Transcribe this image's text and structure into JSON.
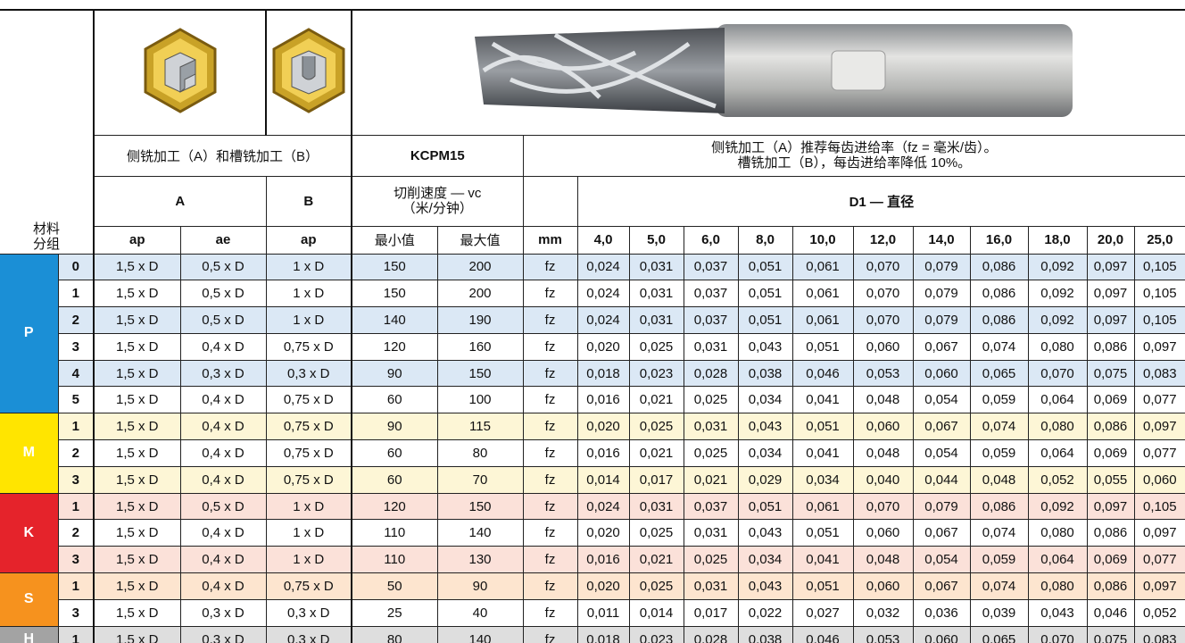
{
  "header": {
    "material_group": [
      "材料",
      "分组"
    ],
    "operation": "侧铣加工（A）和槽铣加工（B）",
    "grade": "KCPM15",
    "note": [
      "侧铣加工（A）推荐每齿进给率（fz = 毫米/齿）。",
      "槽铣加工（B），每齿进给率降低 10%。"
    ],
    "col_a": "A",
    "col_b": "B",
    "speed": [
      "切削速度 — vc",
      "（米/分钟）"
    ],
    "diameter": "D1 — 直径",
    "ap": "ap",
    "ae": "ae",
    "b_ap": "ap",
    "vc_min": "最小值",
    "vc_max": "最大值",
    "unit": "mm",
    "diameters": [
      "4,0",
      "5,0",
      "6,0",
      "8,0",
      "10,0",
      "12,0",
      "14,0",
      "16,0",
      "18,0",
      "20,0",
      "25,0"
    ]
  },
  "groups": [
    {
      "name": "P",
      "color": "#1b8fd6",
      "tint": "#dbe8f5",
      "rows": [
        {
          "sub": "0",
          "ap": "1,5 x D",
          "ae": "0,5 x D",
          "b_ap": "1 x D",
          "vc_min": "150",
          "vc_max": "200",
          "unit": "fz",
          "fz": [
            "0,024",
            "0,031",
            "0,037",
            "0,051",
            "0,061",
            "0,070",
            "0,079",
            "0,086",
            "0,092",
            "0,097",
            "0,105"
          ]
        },
        {
          "sub": "1",
          "ap": "1,5 x D",
          "ae": "0,5 x D",
          "b_ap": "1 x D",
          "vc_min": "150",
          "vc_max": "200",
          "unit": "fz",
          "fz": [
            "0,024",
            "0,031",
            "0,037",
            "0,051",
            "0,061",
            "0,070",
            "0,079",
            "0,086",
            "0,092",
            "0,097",
            "0,105"
          ]
        },
        {
          "sub": "2",
          "ap": "1,5 x D",
          "ae": "0,5 x D",
          "b_ap": "1 x D",
          "vc_min": "140",
          "vc_max": "190",
          "unit": "fz",
          "fz": [
            "0,024",
            "0,031",
            "0,037",
            "0,051",
            "0,061",
            "0,070",
            "0,079",
            "0,086",
            "0,092",
            "0,097",
            "0,105"
          ]
        },
        {
          "sub": "3",
          "ap": "1,5 x D",
          "ae": "0,4 x D",
          "b_ap": "0,75 x D",
          "vc_min": "120",
          "vc_max": "160",
          "unit": "fz",
          "fz": [
            "0,020",
            "0,025",
            "0,031",
            "0,043",
            "0,051",
            "0,060",
            "0,067",
            "0,074",
            "0,080",
            "0,086",
            "0,097"
          ]
        },
        {
          "sub": "4",
          "ap": "1,5 x D",
          "ae": "0,3 x D",
          "b_ap": "0,3 x D",
          "vc_min": "90",
          "vc_max": "150",
          "unit": "fz",
          "fz": [
            "0,018",
            "0,023",
            "0,028",
            "0,038",
            "0,046",
            "0,053",
            "0,060",
            "0,065",
            "0,070",
            "0,075",
            "0,083"
          ]
        },
        {
          "sub": "5",
          "ap": "1,5 x D",
          "ae": "0,4 x D",
          "b_ap": "0,75 x D",
          "vc_min": "60",
          "vc_max": "100",
          "unit": "fz",
          "fz": [
            "0,016",
            "0,021",
            "0,025",
            "0,034",
            "0,041",
            "0,048",
            "0,054",
            "0,059",
            "0,064",
            "0,069",
            "0,077"
          ]
        }
      ]
    },
    {
      "name": "M",
      "color": "#ffe500",
      "tint": "#fdf6d6",
      "rows": [
        {
          "sub": "1",
          "ap": "1,5 x D",
          "ae": "0,4 x D",
          "b_ap": "0,75 x D",
          "vc_min": "90",
          "vc_max": "115",
          "unit": "fz",
          "fz": [
            "0,020",
            "0,025",
            "0,031",
            "0,043",
            "0,051",
            "0,060",
            "0,067",
            "0,074",
            "0,080",
            "0,086",
            "0,097"
          ]
        },
        {
          "sub": "2",
          "ap": "1,5 x D",
          "ae": "0,4 x D",
          "b_ap": "0,75 x D",
          "vc_min": "60",
          "vc_max": "80",
          "unit": "fz",
          "fz": [
            "0,016",
            "0,021",
            "0,025",
            "0,034",
            "0,041",
            "0,048",
            "0,054",
            "0,059",
            "0,064",
            "0,069",
            "0,077"
          ]
        },
        {
          "sub": "3",
          "ap": "1,5 x D",
          "ae": "0,4 x D",
          "b_ap": "0,75 x D",
          "vc_min": "60",
          "vc_max": "70",
          "unit": "fz",
          "fz": [
            "0,014",
            "0,017",
            "0,021",
            "0,029",
            "0,034",
            "0,040",
            "0,044",
            "0,048",
            "0,052",
            "0,055",
            "0,060"
          ]
        }
      ]
    },
    {
      "name": "K",
      "color": "#e5232b",
      "tint": "#fbe1d9",
      "rows": [
        {
          "sub": "1",
          "ap": "1,5 x D",
          "ae": "0,5 x D",
          "b_ap": "1 x D",
          "vc_min": "120",
          "vc_max": "150",
          "unit": "fz",
          "fz": [
            "0,024",
            "0,031",
            "0,037",
            "0,051",
            "0,061",
            "0,070",
            "0,079",
            "0,086",
            "0,092",
            "0,097",
            "0,105"
          ]
        },
        {
          "sub": "2",
          "ap": "1,5 x D",
          "ae": "0,4 x D",
          "b_ap": "1 x D",
          "vc_min": "110",
          "vc_max": "140",
          "unit": "fz",
          "fz": [
            "0,020",
            "0,025",
            "0,031",
            "0,043",
            "0,051",
            "0,060",
            "0,067",
            "0,074",
            "0,080",
            "0,086",
            "0,097"
          ]
        },
        {
          "sub": "3",
          "ap": "1,5 x D",
          "ae": "0,4 x D",
          "b_ap": "1 x D",
          "vc_min": "110",
          "vc_max": "130",
          "unit": "fz",
          "fz": [
            "0,016",
            "0,021",
            "0,025",
            "0,034",
            "0,041",
            "0,048",
            "0,054",
            "0,059",
            "0,064",
            "0,069",
            "0,077"
          ]
        }
      ]
    },
    {
      "name": "S",
      "color": "#f6921e",
      "tint": "#fde5cf",
      "rows": [
        {
          "sub": "1",
          "ap": "1,5 x D",
          "ae": "0,4 x D",
          "b_ap": "0,75 x D",
          "vc_min": "50",
          "vc_max": "90",
          "unit": "fz",
          "fz": [
            "0,020",
            "0,025",
            "0,031",
            "0,043",
            "0,051",
            "0,060",
            "0,067",
            "0,074",
            "0,080",
            "0,086",
            "0,097"
          ]
        },
        {
          "sub": "3",
          "ap": "1,5 x D",
          "ae": "0,3 x D",
          "b_ap": "0,3 x D",
          "vc_min": "25",
          "vc_max": "40",
          "unit": "fz",
          "fz": [
            "0,011",
            "0,014",
            "0,017",
            "0,022",
            "0,027",
            "0,032",
            "0,036",
            "0,039",
            "0,043",
            "0,046",
            "0,052"
          ]
        }
      ]
    },
    {
      "name": "H",
      "color": "#a3a3a3",
      "tint": "#dedede",
      "rows": [
        {
          "sub": "1",
          "ap": "1,5 x D",
          "ae": "0,3 x D",
          "b_ap": "0,3 x D",
          "vc_min": "80",
          "vc_max": "140",
          "unit": "fz",
          "fz": [
            "0,018",
            "0,023",
            "0,028",
            "0,038",
            "0,046",
            "0,053",
            "0,060",
            "0,065",
            "0,070",
            "0,075",
            "0,083"
          ]
        }
      ]
    }
  ]
}
